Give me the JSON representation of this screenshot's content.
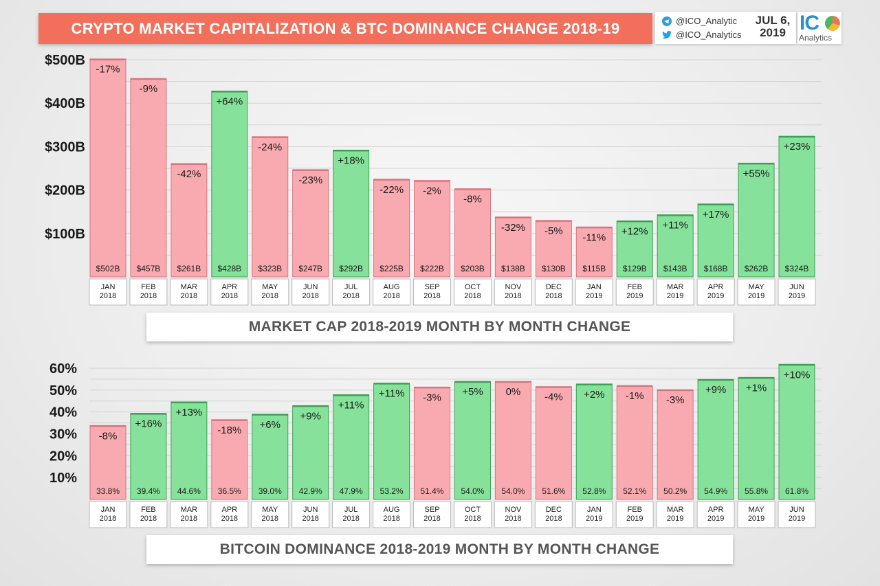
{
  "header": {
    "title": "CRYPTO MARKET CAPITALIZATION & BTC DOMINANCE CHANGE 2018-19",
    "telegram_handle": "@ICO_Analytic",
    "twitter_handle": "@ICO_Analytics",
    "date_line1": "JUL 6,",
    "date_line2": "2019",
    "logo_text": "IC",
    "logo_sub": "Analytics"
  },
  "colors": {
    "banner": "#f26f5b",
    "negative_bar": "#f9aab0",
    "positive_bar": "#86e29a",
    "brand_blue": "#2d8fd0"
  },
  "chart_data": [
    {
      "type": "bar",
      "caption": "MARKET CAP 2018-2019 MONTH BY MONTH CHANGE",
      "categories": [
        [
          "JAN",
          "2018"
        ],
        [
          "FEB",
          "2018"
        ],
        [
          "MAR",
          "2018"
        ],
        [
          "APR",
          "2018"
        ],
        [
          "MAY",
          "2018"
        ],
        [
          "JUN",
          "2018"
        ],
        [
          "JUL",
          "2018"
        ],
        [
          "AUG",
          "2018"
        ],
        [
          "SEP",
          "2018"
        ],
        [
          "OCT",
          "2018"
        ],
        [
          "NOV",
          "2018"
        ],
        [
          "DEC",
          "2018"
        ],
        [
          "JAN",
          "2019"
        ],
        [
          "FEB",
          "2019"
        ],
        [
          "MAR",
          "2019"
        ],
        [
          "APR",
          "2019"
        ],
        [
          "MAY",
          "2019"
        ],
        [
          "JUN",
          "2019"
        ]
      ],
      "values": [
        502,
        457,
        261,
        428,
        323,
        247,
        292,
        225,
        222,
        203,
        138,
        130,
        115,
        129,
        143,
        168,
        262,
        324
      ],
      "value_labels": [
        "$502B",
        "$457B",
        "$261B",
        "$428B",
        "$323B",
        "$247B",
        "$292B",
        "$225B",
        "$222B",
        "$203B",
        "$138B",
        "$130B",
        "$115B",
        "$129B",
        "$143B",
        "$168B",
        "$262B",
        "$324B"
      ],
      "change_labels": [
        "-17%",
        "-9%",
        "-42%",
        "+64%",
        "-24%",
        "-23%",
        "+18%",
        "-22%",
        "-2%",
        "-8%",
        "-32%",
        "-5%",
        "-11%",
        "+12%",
        "+11%",
        "+17%",
        "+55%",
        "+23%"
      ],
      "yticks": [
        100,
        200,
        300,
        400,
        500
      ],
      "ytick_labels": [
        "$100B",
        "$200B",
        "$300B",
        "$400B",
        "$500B"
      ],
      "ylim": [
        0,
        500
      ],
      "grid": true
    },
    {
      "type": "bar",
      "caption": "BITCOIN DOMINANCE 2018-2019 MONTH BY MONTH CHANGE",
      "categories": [
        [
          "JAN",
          "2018"
        ],
        [
          "FEB",
          "2018"
        ],
        [
          "MAR",
          "2018"
        ],
        [
          "APR",
          "2018"
        ],
        [
          "MAY",
          "2018"
        ],
        [
          "JUN",
          "2018"
        ],
        [
          "JUL",
          "2018"
        ],
        [
          "AUG",
          "2018"
        ],
        [
          "SEP",
          "2018"
        ],
        [
          "OCT",
          "2018"
        ],
        [
          "NOV",
          "2018"
        ],
        [
          "DEC",
          "2018"
        ],
        [
          "JAN",
          "2019"
        ],
        [
          "FEB",
          "2019"
        ],
        [
          "MAR",
          "2019"
        ],
        [
          "APR",
          "2019"
        ],
        [
          "MAY",
          "2019"
        ],
        [
          "JUN",
          "2019"
        ]
      ],
      "values": [
        33.8,
        39.4,
        44.6,
        36.5,
        39.0,
        42.9,
        47.9,
        53.2,
        51.4,
        54.0,
        54.0,
        51.6,
        52.8,
        52.1,
        50.2,
        54.9,
        55.8,
        61.8
      ],
      "value_labels": [
        "33.8%",
        "39.4%",
        "44.6%",
        "36.5%",
        "39.0%",
        "42.9%",
        "47.9%",
        "53.2%",
        "51.4%",
        "54.0%",
        "54.0%",
        "51.6%",
        "52.8%",
        "52.1%",
        "50.2%",
        "54.9%",
        "55.8%",
        "61.8%"
      ],
      "change_labels": [
        "-8%",
        "+16%",
        "+13%",
        "-18%",
        "+6%",
        "+9%",
        "+11%",
        "+11%",
        "-3%",
        "+5%",
        "0%",
        "-4%",
        "+2%",
        "-1%",
        "-3%",
        "+9%",
        "+1%",
        "+10%"
      ],
      "yticks": [
        10,
        20,
        30,
        40,
        50,
        60
      ],
      "ytick_labels": [
        "10%",
        "20%",
        "30%",
        "40%",
        "50%",
        "60%"
      ],
      "ylim": [
        0,
        60
      ],
      "grid": true
    }
  ]
}
